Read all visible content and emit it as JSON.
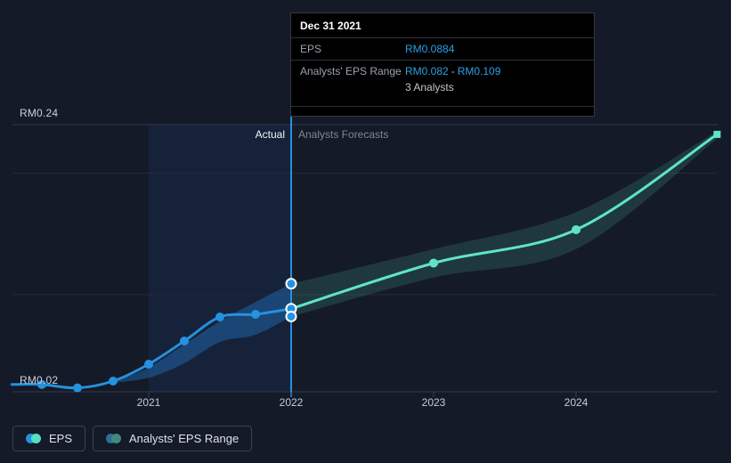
{
  "window": {
    "background": "#141a27"
  },
  "tooltip": {
    "date": "Dec 31 2021",
    "eps_label": "EPS",
    "eps_value": "RM0.0884",
    "range_label": "Analysts' EPS Range",
    "range_low": "RM0.082",
    "range_separator": "-",
    "range_high": "RM0.109",
    "analysts_count": "3 Analysts"
  },
  "labels": {
    "actual": "Actual",
    "forecasts": "Analysts Forecasts",
    "y_max": "RM0.24",
    "y_min": "RM0.02"
  },
  "legend": [
    {
      "label": "EPS",
      "dot1": "#2591df",
      "dot2": "#52e2c1"
    },
    {
      "label": "Analysts' EPS Range",
      "dot1": "#2f6e97",
      "dot2": "#43897d"
    }
  ],
  "chart_data": {
    "type": "line",
    "title": "EPS actual vs analysts forecasts",
    "currency": "RM",
    "x_axis": {
      "start": 2020.04,
      "end": 2024.99,
      "ticks": [
        2021,
        2022,
        2023,
        2024
      ],
      "tick_labels": [
        "2021",
        "2022",
        "2023",
        "2024"
      ]
    },
    "y_axis": {
      "min": 0.02,
      "max": 0.24,
      "min_label": "RM0.02",
      "max_label": "RM0.24",
      "gridlines": [
        0.24,
        0.2,
        0.1,
        0.02
      ]
    },
    "highlight_span": [
      2021.0,
      2022.0
    ],
    "hover_x": 2022.0,
    "hover_points": [
      0.109,
      0.0884,
      0.082
    ],
    "grid_color_major": "#323949",
    "grid_color_minor": "#242b3a",
    "highlight_color": "rgba(45,105,215,0.10)",
    "hover_line_color": "#2591df",
    "tick_color": "#3a4150",
    "series": [
      {
        "name": "EPS",
        "role": "actual",
        "color": "#2591df",
        "points": [
          [
            2020.04,
            0.026
          ],
          [
            2020.25,
            0.026
          ],
          [
            2020.5,
            0.0232
          ],
          [
            2020.75,
            0.0288
          ],
          [
            2021.0,
            0.0427
          ],
          [
            2021.25,
            0.0618
          ],
          [
            2021.5,
            0.0816
          ],
          [
            2021.75,
            0.0838
          ],
          [
            2022.0,
            0.0884
          ]
        ],
        "marker_indices": [
          1,
          2,
          3,
          4,
          5,
          6,
          7
        ]
      },
      {
        "name": "Analysts Forecast",
        "role": "forecast",
        "color": "#5fe5c4",
        "points": [
          [
            2022.0,
            0.0884
          ],
          [
            2023.0,
            0.126
          ],
          [
            2024.0,
            0.1535
          ],
          [
            2024.99,
            0.232
          ]
        ],
        "marker_indices": [
          1,
          2
        ],
        "end_square_index": 3
      }
    ],
    "bands": [
      {
        "name": "actual-eps-range",
        "color": "rgba(34,125,214,0.38)",
        "top": [
          [
            2020.75,
            0.0285
          ],
          [
            2021.0,
            0.04
          ],
          [
            2021.25,
            0.059
          ],
          [
            2021.5,
            0.078
          ],
          [
            2021.75,
            0.094
          ],
          [
            2022.0,
            0.109
          ]
        ],
        "bottom": [
          [
            2022.0,
            0.082
          ],
          [
            2021.75,
            0.067
          ],
          [
            2021.5,
            0.061
          ],
          [
            2021.25,
            0.0435
          ],
          [
            2021.0,
            0.0315
          ],
          [
            2020.75,
            0.0275
          ]
        ]
      },
      {
        "name": "forecast-eps-range",
        "color": "rgba(95,229,196,0.15)",
        "top": [
          [
            2022.0,
            0.109
          ],
          [
            2023.0,
            0.1375
          ],
          [
            2024.0,
            0.168
          ],
          [
            2024.99,
            0.2345
          ]
        ],
        "bottom": [
          [
            2024.99,
            0.2285
          ],
          [
            2024.0,
            0.1375
          ],
          [
            2023.0,
            0.114
          ],
          [
            2022.0,
            0.082
          ]
        ]
      }
    ]
  }
}
